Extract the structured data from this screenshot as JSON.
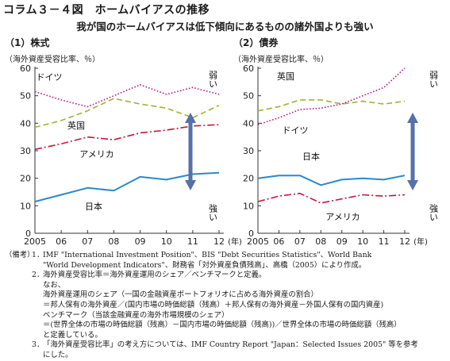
{
  "figure": {
    "title": "コラム３－４図　ホームバイアスの推移",
    "subtitle": "我が国のホームバイアスは低下傾向にあるものの諸外国よりも強い"
  },
  "colors": {
    "japan": "#2a8ac8",
    "usa": "#c8163c",
    "uk": "#9ab632",
    "germany": "#c0188c",
    "arrow": "#5671a8",
    "axis": "#333333"
  },
  "chart_data": [
    {
      "type": "line",
      "panel_title": "（1）株式",
      "unit_label": "（海外資産受容比率、％）",
      "x": [
        2005,
        2006,
        2007,
        2008,
        2009,
        2010,
        2011,
        2012
      ],
      "x_tick_labels": [
        "2005",
        "06",
        "07",
        "08",
        "09",
        "10",
        "11",
        "12"
      ],
      "x_unit": "(年)",
      "ylim": [
        0,
        60
      ],
      "y_ticks": [
        0,
        10,
        20,
        30,
        40,
        50,
        60
      ],
      "grid": false,
      "strength_labels": {
        "weak": "弱い",
        "strong": "強い"
      },
      "series": [
        {
          "name": "ドイツ",
          "key": "germany",
          "values": [
            51.5,
            48.5,
            46.0,
            50.0,
            54.0,
            50.5,
            53.0,
            50.5
          ]
        },
        {
          "name": "英国",
          "key": "uk",
          "values": [
            38.5,
            41.0,
            44.5,
            49.0,
            47.0,
            45.5,
            42.0,
            46.5
          ]
        },
        {
          "name": "アメリカ",
          "key": "usa",
          "values": [
            30.5,
            32.5,
            35.0,
            34.0,
            36.5,
            37.5,
            39.0,
            39.5
          ]
        },
        {
          "name": "日本",
          "key": "japan",
          "values": [
            11.5,
            14.0,
            16.5,
            15.5,
            20.5,
            19.5,
            21.5,
            22.0
          ]
        }
      ]
    },
    {
      "type": "line",
      "panel_title": "（2）債券",
      "unit_label": "（海外資産受容比率、％）",
      "x": [
        2005,
        2006,
        2007,
        2008,
        2009,
        2010,
        2011,
        2012
      ],
      "x_tick_labels": [
        "2005",
        "06",
        "07",
        "08",
        "09",
        "10",
        "11",
        "12"
      ],
      "x_unit": "(年)",
      "ylim": [
        0,
        60
      ],
      "y_ticks": [
        0,
        10,
        20,
        30,
        40,
        50,
        60
      ],
      "grid": false,
      "strength_labels": {
        "weak": "弱い",
        "strong": "強い"
      },
      "series": [
        {
          "name": "英国",
          "key": "uk",
          "values": [
            44.5,
            46.0,
            48.5,
            48.5,
            47.0,
            48.0,
            47.0,
            48.0
          ]
        },
        {
          "name": "ドイツ",
          "key": "germany",
          "values": [
            39.5,
            42.0,
            45.0,
            45.5,
            47.0,
            50.0,
            53.0,
            60.0
          ]
        },
        {
          "name": "日本",
          "key": "japan",
          "values": [
            20.0,
            21.0,
            21.0,
            17.5,
            19.5,
            20.0,
            19.5,
            21.0
          ]
        },
        {
          "name": "アメリカ",
          "key": "usa",
          "values": [
            11.5,
            13.5,
            14.5,
            11.0,
            12.5,
            14.0,
            13.5,
            14.0
          ]
        }
      ]
    }
  ],
  "notes": {
    "label": "（備考）",
    "items": [
      {
        "num": "1．",
        "lines": [
          "IMF \"International Investment Position\"、BIS \"Debt Securities Statistics\"、World Bank",
          "\"World Development Indicators\"、財務省「対外資産負債残高」、高橋（2005）により作成。"
        ]
      },
      {
        "num": "2．",
        "lines": [
          "海外資産受容比率＝海外資産運用のシェア／ベンチマークと定義。",
          "なお、",
          "海外資産運用のシェア（一国の金融資産ポートフォリオに占める海外資産の割合）",
          "＝邦人保有の海外資産／(国内市場の時価総額（残高）＋邦人保有の海外資産－外国人保有の国内資産)",
          "ベンチマーク（当該金融資産の海外市場規模のシェア）",
          "＝(世界全体の市場の時価総額（残高）－国内市場の時価総額（残高))／世界全体の市場の時価総額（残高）",
          "と定義している。"
        ]
      },
      {
        "num": "3．",
        "lines": [
          "「海外資産受容比率」の考え方については、IMF Country Report \"Japan：Selected Issues 2005\" 等を参考",
          "にした。"
        ]
      }
    ]
  }
}
